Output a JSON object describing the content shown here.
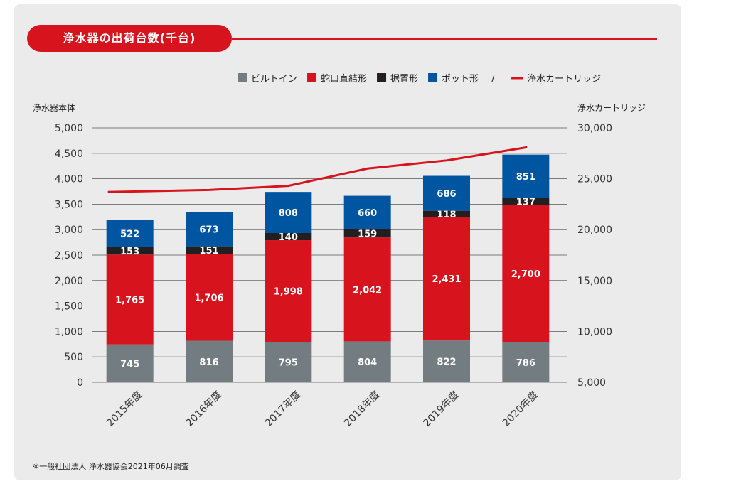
{
  "chart_data": {
    "type": "bar",
    "stacked": true,
    "title": "浄水器の出荷台数(千台)",
    "ylabel_left": "浄水器本体",
    "ylabel_right": "浄水カートリッジ",
    "categories": [
      "2015年度",
      "2016年度",
      "2017年度",
      "2018年度",
      "2019年度",
      "2020年度"
    ],
    "ylim": [
      0,
      5000
    ],
    "y2lim": [
      5000,
      30000
    ],
    "y_ticks": [
      0,
      500,
      1000,
      1500,
      2000,
      2500,
      3000,
      3500,
      4000,
      4500,
      5000
    ],
    "y_tick_labels": [
      "0",
      "500",
      "1,000",
      "1,500",
      "2,000",
      "2,500",
      "3,000",
      "3,500",
      "4,000",
      "4,500",
      "5,000"
    ],
    "y2_ticks": [
      5000,
      10000,
      15000,
      20000,
      25000,
      30000
    ],
    "y2_tick_labels": [
      "5,000",
      "10,000",
      "15,000",
      "20,000",
      "25,000",
      "30,000"
    ],
    "series": [
      {
        "name": "ビルトイン",
        "color": "#737c80",
        "values": [
          745,
          816,
          795,
          804,
          822,
          786
        ],
        "labels": [
          "745",
          "816",
          "795",
          "804",
          "822",
          "786"
        ]
      },
      {
        "name": "蛇口直結形",
        "color": "#d7141d",
        "values": [
          1765,
          1706,
          1998,
          2042,
          2431,
          2700
        ],
        "labels": [
          "1,765",
          "1,706",
          "1,998",
          "2,042",
          "2,431",
          "2,700"
        ]
      },
      {
        "name": "据置形",
        "color": "#231f20",
        "values": [
          153,
          151,
          140,
          159,
          118,
          137
        ],
        "labels": [
          "153",
          "151",
          "140",
          "159",
          "118",
          "137"
        ]
      },
      {
        "name": "ポット形",
        "color": "#0055a0",
        "values": [
          522,
          673,
          808,
          660,
          686,
          851
        ],
        "labels": [
          "522",
          "673",
          "808",
          "660",
          "686",
          "851"
        ]
      }
    ],
    "line_series": {
      "name": "浄水カートリッジ",
      "color": "#d7141d",
      "axis": "right",
      "values": [
        23700,
        23900,
        24300,
        26000,
        26800,
        28100
      ]
    },
    "legend_separator": "/",
    "legend_position": "top-right",
    "grid": true
  },
  "footnote": "※一般社団法人 浄水器協会2021年06月調査"
}
